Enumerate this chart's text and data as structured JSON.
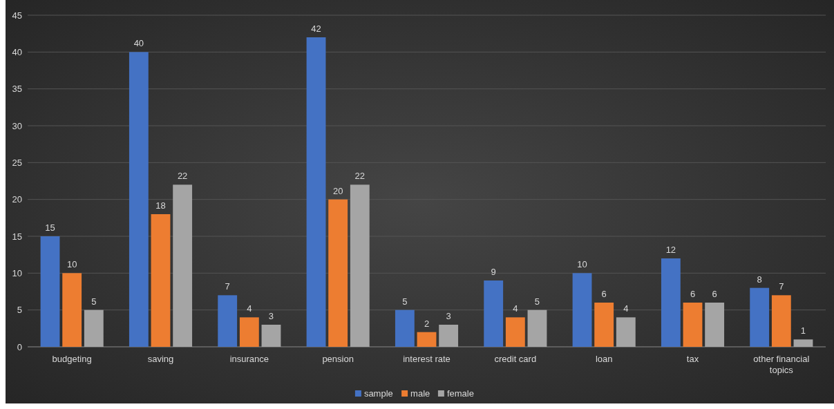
{
  "chart_data": {
    "type": "bar",
    "categories": [
      "budgeting",
      "saving",
      "insurance",
      "pension",
      "interest rate",
      "credit card",
      "loan",
      "tax",
      "other financial topics"
    ],
    "series": [
      {
        "name": "sample",
        "color": "#4472c4",
        "values": [
          15,
          40,
          7,
          42,
          5,
          9,
          10,
          12,
          8
        ]
      },
      {
        "name": "male",
        "color": "#ed7d31",
        "values": [
          10,
          18,
          4,
          20,
          2,
          4,
          6,
          6,
          7
        ]
      },
      {
        "name": "female",
        "color": "#a5a5a5",
        "values": [
          5,
          22,
          3,
          22,
          3,
          5,
          4,
          6,
          1
        ]
      }
    ],
    "ylim": [
      0,
      45
    ],
    "yticks": [
      0,
      5,
      10,
      15,
      20,
      25,
      30,
      35,
      40,
      45
    ],
    "grid": "y",
    "legend": "bottom",
    "data_labels": true
  }
}
